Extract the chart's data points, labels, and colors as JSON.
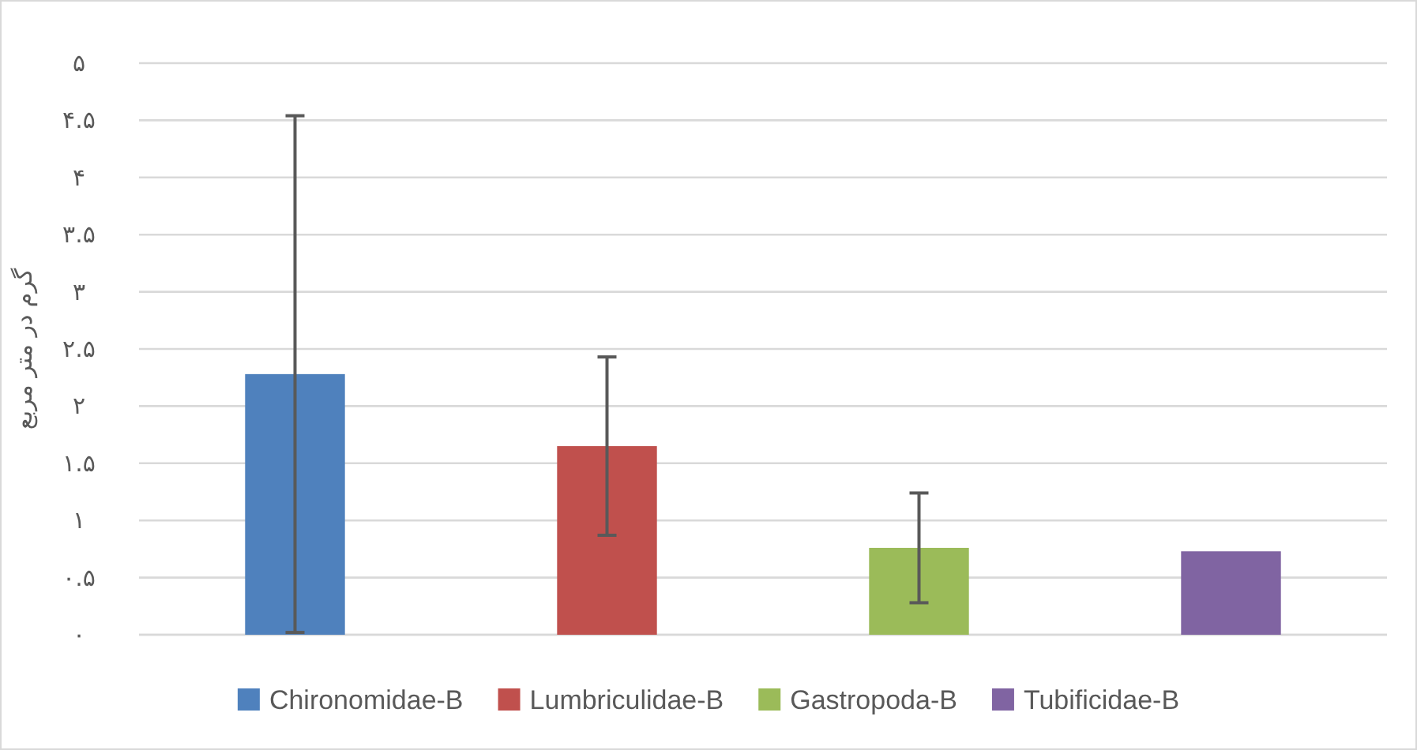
{
  "chart_data": {
    "type": "bar",
    "ylabel": "گرم در متر مربع",
    "categories": [
      null,
      null,
      null,
      null
    ],
    "series": [
      {
        "name": "Chironomidae-B",
        "color": "#4f81bd",
        "values": [
          2.28,
          null,
          null,
          null
        ],
        "errors": [
          2.26,
          null,
          null,
          null
        ]
      },
      {
        "name": "Lumbriculidae-B",
        "color": "#c0504d",
        "values": [
          null,
          1.65,
          null,
          null
        ],
        "errors": [
          null,
          0.78,
          null,
          null
        ]
      },
      {
        "name": "Gastropoda-B",
        "color": "#9bbb59",
        "values": [
          null,
          null,
          0.76,
          null
        ],
        "errors": [
          null,
          null,
          0.48,
          null
        ]
      },
      {
        "name": "Tubificidae-B",
        "color": "#8064a2",
        "values": [
          null,
          null,
          null,
          0.73
        ]
      }
    ],
    "ylim": [
      0,
      5
    ],
    "yticks": [
      {
        "value": 0,
        "label": "۰"
      },
      {
        "value": 0.5,
        "label": "۰.۵"
      },
      {
        "value": 1,
        "label": "۱"
      },
      {
        "value": 1.5,
        "label": "۱.۵"
      },
      {
        "value": 2,
        "label": "۲"
      },
      {
        "value": 2.5,
        "label": "۲.۵"
      },
      {
        "value": 3,
        "label": "۳"
      },
      {
        "value": 3.5,
        "label": "۳.۵"
      },
      {
        "value": 4,
        "label": "۴"
      },
      {
        "value": 4.5,
        "label": "۴.۵"
      },
      {
        "value": 5,
        "label": "۵"
      }
    ],
    "grid": "y",
    "legend": "bottom"
  }
}
